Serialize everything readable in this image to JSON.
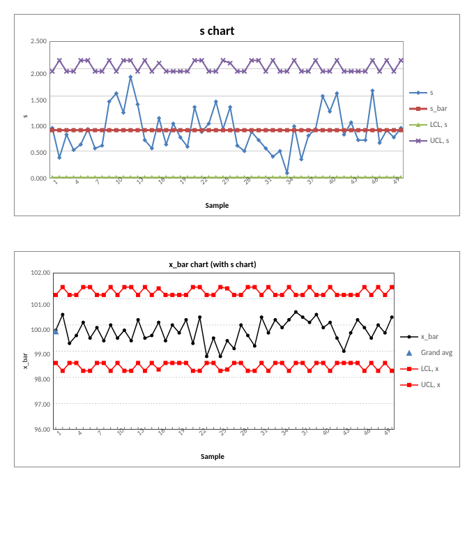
{
  "s_chart": {
    "type": "line",
    "title": "s chart",
    "title_fontsize": 18,
    "title_fontweight": 700,
    "x_label": "Sample",
    "y_label": "s",
    "label_fontsize": 11,
    "background_color": "#ffffff",
    "grid_color": "#bfbfbf",
    "xlim": [
      1,
      50
    ],
    "ylim": [
      0.0,
      2.5
    ],
    "ytick_format": "0.000",
    "yticks": [
      "2.500",
      "2.000",
      "1.500",
      "1.000",
      "0.500",
      "0.000"
    ],
    "xticks": [
      1,
      4,
      7,
      10,
      13,
      16,
      19,
      22,
      25,
      28,
      31,
      34,
      37,
      40,
      43,
      46,
      49
    ],
    "xtick_rotation": -45,
    "xtick_fontstyle": "italic",
    "series": {
      "s": {
        "label": "s",
        "color": "#4a7ebb",
        "line_width": 2,
        "marker": "diamond",
        "marker_size": 5,
        "values": [
          0.92,
          0.38,
          0.8,
          0.52,
          0.62,
          0.9,
          0.55,
          0.6,
          1.4,
          1.55,
          1.2,
          1.85,
          1.35,
          0.7,
          0.55,
          1.1,
          0.62,
          1.0,
          0.75,
          0.58,
          1.3,
          0.85,
          1.0,
          1.4,
          0.9,
          1.3,
          0.6,
          0.5,
          0.85,
          0.7,
          0.55,
          0.4,
          0.5,
          0.1,
          0.95,
          0.35,
          0.78,
          0.9,
          1.5,
          1.22,
          1.55,
          0.8,
          1.02,
          0.7,
          0.7,
          1.6,
          0.65,
          0.88,
          0.75,
          0.92
        ]
      },
      "s_bar": {
        "label": "s_bar",
        "color": "#be4b48",
        "line_width": 3,
        "marker": "square",
        "marker_size": 5,
        "values": [
          0.88,
          0.88,
          0.88,
          0.88,
          0.88,
          0.88,
          0.88,
          0.88,
          0.88,
          0.88,
          0.88,
          0.88,
          0.88,
          0.88,
          0.88,
          0.88,
          0.88,
          0.88,
          0.88,
          0.88,
          0.88,
          0.88,
          0.88,
          0.88,
          0.88,
          0.88,
          0.88,
          0.88,
          0.88,
          0.88,
          0.88,
          0.88,
          0.88,
          0.88,
          0.88,
          0.88,
          0.88,
          0.88,
          0.88,
          0.88,
          0.88,
          0.88,
          0.88,
          0.88,
          0.88,
          0.88,
          0.88,
          0.88,
          0.88,
          0.88
        ]
      },
      "lcl_s": {
        "label": "LCL, s",
        "color": "#98b954",
        "line_width": 2,
        "marker": "triangle",
        "marker_size": 5,
        "values": [
          0.02,
          0.02,
          0.02,
          0.02,
          0.02,
          0.02,
          0.02,
          0.02,
          0.02,
          0.02,
          0.02,
          0.02,
          0.02,
          0.02,
          0.02,
          0.02,
          0.02,
          0.02,
          0.02,
          0.02,
          0.02,
          0.02,
          0.02,
          0.02,
          0.02,
          0.02,
          0.02,
          0.02,
          0.02,
          0.02,
          0.02,
          0.02,
          0.02,
          0.02,
          0.02,
          0.02,
          0.02,
          0.02,
          0.02,
          0.02,
          0.02,
          0.02,
          0.02,
          0.02,
          0.02,
          0.02,
          0.02,
          0.02,
          0.02,
          0.02
        ]
      },
      "ucl_s": {
        "label": "UCL, s",
        "color": "#7d60a0",
        "line_width": 2,
        "marker": "x",
        "marker_size": 6,
        "values": [
          1.95,
          2.15,
          1.95,
          1.95,
          2.15,
          2.15,
          1.95,
          1.95,
          2.15,
          1.95,
          2.15,
          2.15,
          1.95,
          2.15,
          1.95,
          2.1,
          1.95,
          1.95,
          1.95,
          1.95,
          2.15,
          2.15,
          1.95,
          1.95,
          2.15,
          2.1,
          1.95,
          1.95,
          2.15,
          2.15,
          1.95,
          2.15,
          1.95,
          1.95,
          2.15,
          1.95,
          1.95,
          2.15,
          1.95,
          1.95,
          2.15,
          1.95,
          1.95,
          1.95,
          1.95,
          2.15,
          1.95,
          2.15,
          1.95,
          2.15
        ]
      }
    },
    "legend_position": "right",
    "frame_height": 290,
    "plot_border_color": "#868686"
  },
  "xbar_chart": {
    "type": "line",
    "title": "x_bar chart (with s chart)",
    "title_fontsize": 12,
    "title_fontweight": 700,
    "x_label": "Sample",
    "y_label": "x_bar",
    "label_fontsize": 11,
    "background_color": "#ffffff",
    "grid_color": "#bfbfbf",
    "grid_dash": "2,2",
    "xlim": [
      1,
      50
    ],
    "ylim": [
      96.0,
      102.0
    ],
    "ytick_format": "0.00",
    "yticks": [
      "102.00",
      "101.00",
      "100.00",
      "99.00",
      "98.00",
      "97.00",
      "96.00"
    ],
    "xticks": [
      1,
      4,
      7,
      10,
      13,
      16,
      19,
      22,
      25,
      28,
      31,
      34,
      37,
      40,
      43,
      46,
      49
    ],
    "xtick_rotation": -45,
    "xtick_fontstyle": "italic",
    "series": {
      "x_bar": {
        "label": "x_bar",
        "color": "#000000",
        "line_width": 1.5,
        "marker": "circle",
        "marker_size": 4,
        "values": [
          99.8,
          100.4,
          99.3,
          99.6,
          100.1,
          99.5,
          99.9,
          99.4,
          100.0,
          99.5,
          99.8,
          99.4,
          100.2,
          99.5,
          99.6,
          100.1,
          99.4,
          100.0,
          99.7,
          100.2,
          99.3,
          100.3,
          98.8,
          99.5,
          98.8,
          99.4,
          99.1,
          100.0,
          99.6,
          99.2,
          100.3,
          99.7,
          100.2,
          99.9,
          100.2,
          100.5,
          100.3,
          100.1,
          100.4,
          99.9,
          100.1,
          99.5,
          99.0,
          99.7,
          100.2,
          99.9,
          99.5,
          100.0,
          99.7,
          100.3
        ]
      },
      "grand_avg": {
        "label": "Grand avg",
        "color": "#4a7ebb",
        "line_width": 0,
        "marker": "triangle",
        "marker_size": 7,
        "values": [
          99.75
        ],
        "x_positions": [
          1
        ]
      },
      "lcl_x": {
        "label": "LCL, x",
        "color": "#ff0000",
        "line_width": 1.5,
        "marker": "square",
        "marker_size": 5,
        "values": [
          98.55,
          98.25,
          98.55,
          98.55,
          98.25,
          98.25,
          98.55,
          98.55,
          98.25,
          98.55,
          98.25,
          98.25,
          98.55,
          98.25,
          98.55,
          98.3,
          98.55,
          98.55,
          98.55,
          98.55,
          98.25,
          98.25,
          98.55,
          98.55,
          98.25,
          98.3,
          98.55,
          98.55,
          98.25,
          98.25,
          98.55,
          98.25,
          98.55,
          98.55,
          98.25,
          98.55,
          98.55,
          98.25,
          98.55,
          98.55,
          98.25,
          98.55,
          98.55,
          98.55,
          98.55,
          98.25,
          98.55,
          98.25,
          98.55,
          98.25
        ]
      },
      "ucl_x": {
        "label": "UCL, x",
        "color": "#ff0000",
        "line_width": 1.5,
        "marker": "square",
        "marker_size": 5,
        "values": [
          101.15,
          101.45,
          101.15,
          101.15,
          101.45,
          101.45,
          101.15,
          101.15,
          101.45,
          101.15,
          101.45,
          101.45,
          101.15,
          101.45,
          101.15,
          101.4,
          101.15,
          101.15,
          101.15,
          101.15,
          101.45,
          101.45,
          101.15,
          101.15,
          101.45,
          101.4,
          101.15,
          101.15,
          101.45,
          101.45,
          101.15,
          101.45,
          101.15,
          101.15,
          101.45,
          101.15,
          101.15,
          101.45,
          101.15,
          101.15,
          101.45,
          101.15,
          101.15,
          101.15,
          101.15,
          101.45,
          101.15,
          101.45,
          101.15,
          101.45
        ]
      }
    },
    "legend_position": "right",
    "frame_height": 310,
    "plot_border_color": "#404040"
  }
}
